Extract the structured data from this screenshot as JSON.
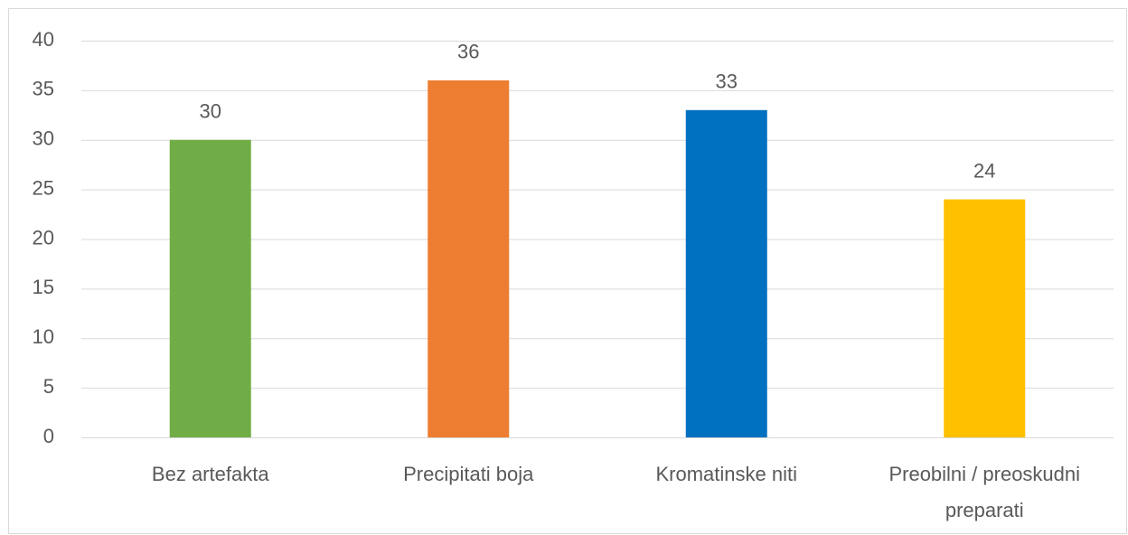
{
  "chart_data": {
    "type": "bar",
    "categories": [
      "Bez artefakta",
      "Precipitati boja",
      "Kromatinske niti",
      "Preobilni / preoskudni preparati"
    ],
    "values": [
      30,
      36,
      33,
      24
    ],
    "colors": [
      "#70ad47",
      "#ed7d31",
      "#0070c0",
      "#ffc000"
    ],
    "ylim": [
      0,
      40
    ],
    "yticks": [
      0,
      5,
      10,
      15,
      20,
      25,
      30,
      35,
      40
    ],
    "grid": true,
    "data_labels": true
  }
}
